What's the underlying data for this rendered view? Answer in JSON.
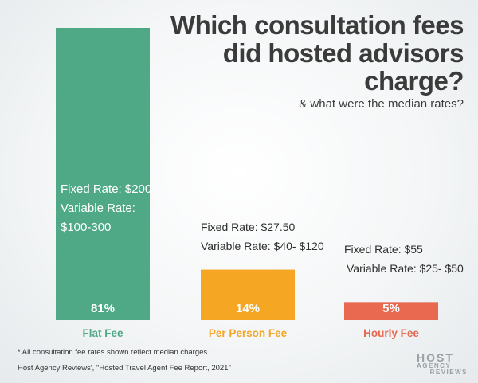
{
  "chart_data": {
    "type": "bar",
    "title": "Which consultation fees did hosted advisors charge?",
    "subtitle": "& what were the median rates?",
    "categories": [
      "Flat Fee",
      "Per Person Fee",
      "Hourly Fee"
    ],
    "values": [
      81,
      14,
      5
    ],
    "value_labels": [
      "81%",
      "14%",
      "5%"
    ],
    "colors": [
      "#4fa987",
      "#f5a623",
      "#e8694f"
    ],
    "annotations": [
      {
        "fixed": "Fixed Rate: $200",
        "variable": "Variable Rate:",
        "variable_range": "$100-300"
      },
      {
        "fixed": "Fixed Rate: $27.50",
        "variable": "Variable Rate: $40- $120"
      },
      {
        "fixed": "Fixed Rate: $55",
        "variable": "Variable Rate: $25- $50"
      }
    ],
    "ylim": [
      0,
      81
    ],
    "grid": false,
    "legend": "none"
  },
  "footnote": "* All consultation fee rates shown reflect median charges",
  "source": "Host Agency Reviews', \"Hosted Travel Agent Fee Report, 2021\"",
  "logo": {
    "line1": "HOST",
    "line2": "AGENCY",
    "line3": "REVIEWS"
  }
}
